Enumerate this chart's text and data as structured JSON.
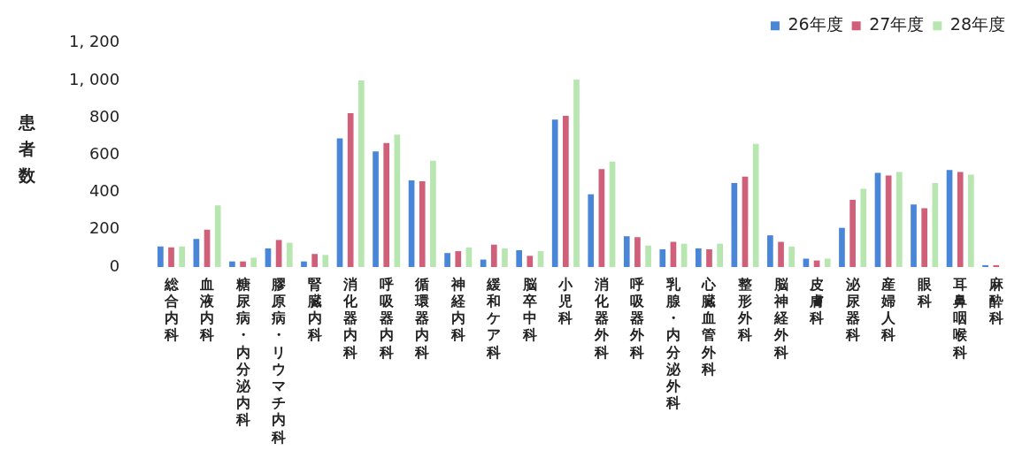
{
  "chart_data": {
    "type": "bar",
    "ylabel": "患者数",
    "categories": [
      "総合内科",
      "血液内科",
      "糖尿病・内分泌内科",
      "膠原病・リウマチ内科",
      "腎臓内科",
      "消化器内科",
      "呼吸器内科",
      "循環器内科",
      "神経内科",
      "緩和ケア科",
      "脳卒中科",
      "小児科",
      "消化器外科",
      "呼吸器外科",
      "乳腺・内分泌外科",
      "心臓血管外科",
      "整形外科",
      "脳神経外科",
      "皮膚科",
      "泌尿器科",
      "産婦人科",
      "眼科",
      "耳鼻咽喉科",
      "麻酔科"
    ],
    "series": [
      {
        "name": "26年度",
        "color": "#4a86d8",
        "values": [
          110,
          150,
          30,
          100,
          30,
          690,
          620,
          465,
          75,
          40,
          90,
          790,
          390,
          165,
          95,
          100,
          450,
          170,
          45,
          210,
          505,
          335,
          520,
          10
        ]
      },
      {
        "name": "27年度",
        "color": "#d0607a",
        "values": [
          105,
          200,
          30,
          145,
          70,
          825,
          665,
          460,
          85,
          120,
          60,
          810,
          525,
          160,
          135,
          95,
          485,
          135,
          35,
          360,
          490,
          315,
          510,
          10
        ]
      },
      {
        "name": "28年度",
        "color": "#b8e6b0",
        "values": [
          110,
          330,
          50,
          130,
          65,
          1000,
          710,
          570,
          105,
          100,
          85,
          1005,
          565,
          115,
          125,
          125,
          660,
          110,
          45,
          420,
          510,
          450,
          495,
          null
        ]
      }
    ],
    "ylim": [
      0,
      1200
    ],
    "yticks": [
      0,
      200,
      400,
      600,
      800,
      {
        "value": 1000,
        "label": "1, 000"
      },
      {
        "value": 1200,
        "label": "1, 200"
      }
    ],
    "grid": false,
    "legend": "top right"
  }
}
